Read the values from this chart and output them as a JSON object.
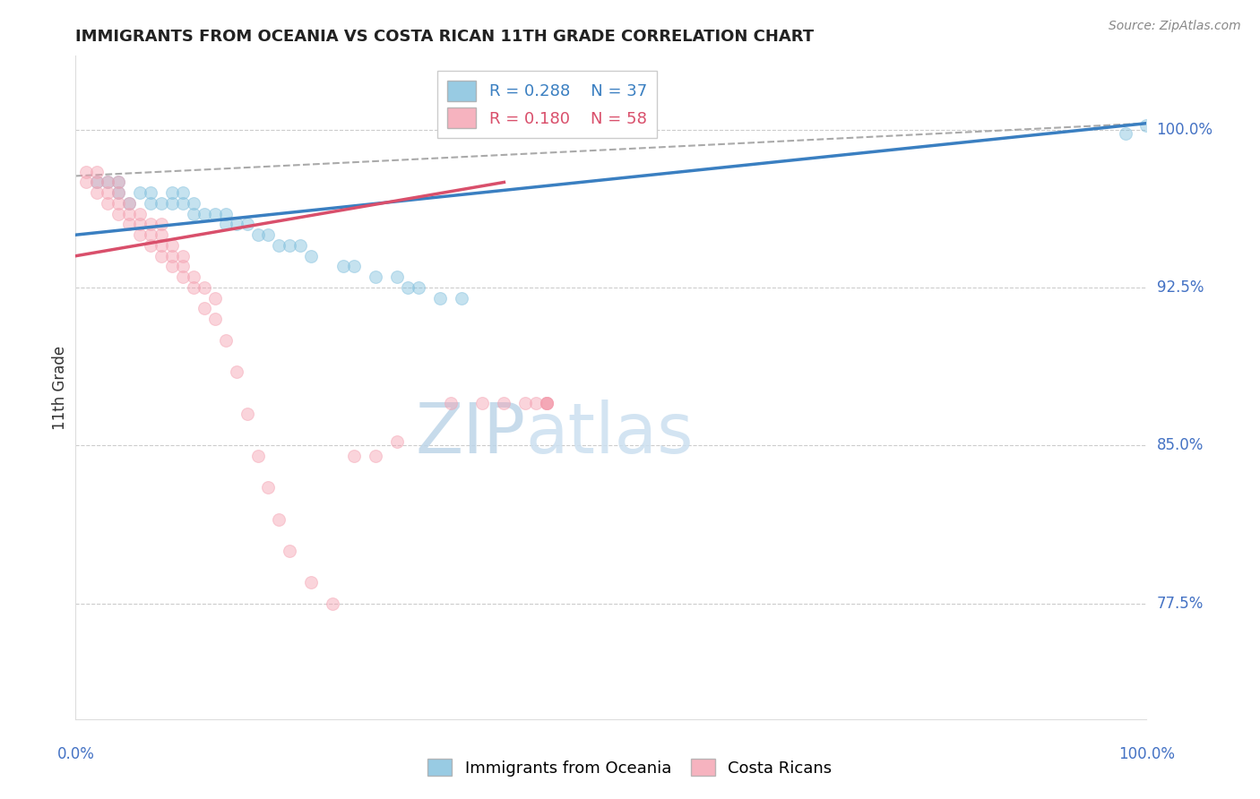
{
  "title": "IMMIGRANTS FROM OCEANIA VS COSTA RICAN 11TH GRADE CORRELATION CHART",
  "source": "Source: ZipAtlas.com",
  "ylabel": "11th Grade",
  "ytick_labels": [
    "100.0%",
    "92.5%",
    "85.0%",
    "77.5%"
  ],
  "ytick_values": [
    1.0,
    0.925,
    0.85,
    0.775
  ],
  "legend_blue_r": "R = 0.288",
  "legend_blue_n": "N = 37",
  "legend_pink_r": "R = 0.180",
  "legend_pink_n": "N = 58",
  "blue_color": "#7fbfdd",
  "pink_color": "#f4a0b0",
  "blue_line_color": "#3a7fc1",
  "pink_line_color": "#d94f6b",
  "watermark_zip_color": "#c8dff0",
  "watermark_atlas_color": "#d8e8f4",
  "title_color": "#222222",
  "axis_label_color": "#4472c4",
  "grid_color": "#cccccc",
  "blue_scatter_x": [
    0.02,
    0.03,
    0.04,
    0.04,
    0.05,
    0.06,
    0.07,
    0.07,
    0.08,
    0.09,
    0.09,
    0.1,
    0.1,
    0.11,
    0.11,
    0.12,
    0.13,
    0.14,
    0.14,
    0.15,
    0.16,
    0.17,
    0.18,
    0.19,
    0.2,
    0.21,
    0.22,
    0.25,
    0.26,
    0.28,
    0.3,
    0.31,
    0.32,
    0.34,
    0.36,
    0.98,
    1.0
  ],
  "blue_scatter_y": [
    0.975,
    0.975,
    0.975,
    0.97,
    0.965,
    0.97,
    0.965,
    0.97,
    0.965,
    0.965,
    0.97,
    0.965,
    0.97,
    0.96,
    0.965,
    0.96,
    0.96,
    0.955,
    0.96,
    0.955,
    0.955,
    0.95,
    0.95,
    0.945,
    0.945,
    0.945,
    0.94,
    0.935,
    0.935,
    0.93,
    0.93,
    0.925,
    0.925,
    0.92,
    0.92,
    0.998,
    1.002
  ],
  "pink_scatter_x": [
    0.01,
    0.01,
    0.02,
    0.02,
    0.02,
    0.03,
    0.03,
    0.03,
    0.04,
    0.04,
    0.04,
    0.04,
    0.05,
    0.05,
    0.05,
    0.06,
    0.06,
    0.06,
    0.07,
    0.07,
    0.07,
    0.08,
    0.08,
    0.08,
    0.08,
    0.09,
    0.09,
    0.09,
    0.1,
    0.1,
    0.1,
    0.11,
    0.11,
    0.12,
    0.12,
    0.13,
    0.13,
    0.14,
    0.15,
    0.16,
    0.17,
    0.18,
    0.19,
    0.2,
    0.22,
    0.24,
    0.26,
    0.28,
    0.3,
    0.35,
    0.38,
    0.4,
    0.42,
    0.43,
    0.44,
    0.44,
    0.44,
    0.44
  ],
  "pink_scatter_y": [
    0.975,
    0.98,
    0.97,
    0.975,
    0.98,
    0.965,
    0.97,
    0.975,
    0.96,
    0.965,
    0.97,
    0.975,
    0.955,
    0.96,
    0.965,
    0.95,
    0.955,
    0.96,
    0.945,
    0.95,
    0.955,
    0.94,
    0.945,
    0.95,
    0.955,
    0.935,
    0.94,
    0.945,
    0.93,
    0.935,
    0.94,
    0.925,
    0.93,
    0.915,
    0.925,
    0.91,
    0.92,
    0.9,
    0.885,
    0.865,
    0.845,
    0.83,
    0.815,
    0.8,
    0.785,
    0.775,
    0.845,
    0.845,
    0.852,
    0.87,
    0.87,
    0.87,
    0.87,
    0.87,
    0.87,
    0.87,
    0.87,
    0.87
  ],
  "blue_line_x0": 0.0,
  "blue_line_x1": 1.0,
  "blue_line_y0": 0.95,
  "blue_line_y1": 1.003,
  "pink_line_x0": 0.0,
  "pink_line_x1": 0.4,
  "pink_line_y0": 0.94,
  "pink_line_y1": 0.975,
  "dashed_line_x": [
    0.0,
    1.0
  ],
  "dashed_line_y": [
    0.978,
    1.003
  ],
  "xlim": [
    0.0,
    1.0
  ],
  "ylim": [
    0.72,
    1.035
  ],
  "marker_size": 100,
  "alpha": 0.45,
  "figsize": [
    14.06,
    8.92
  ],
  "dpi": 100
}
